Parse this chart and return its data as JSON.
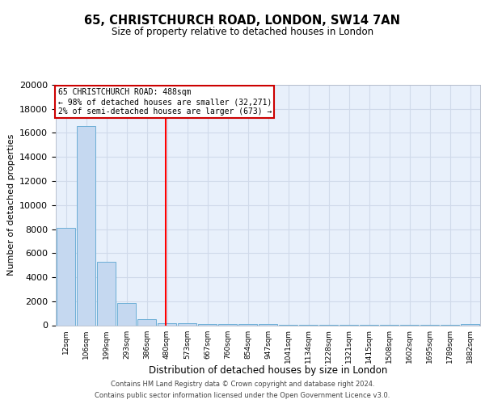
{
  "title_line1": "65, CHRISTCHURCH ROAD, LONDON, SW14 7AN",
  "title_line2": "Size of property relative to detached houses in London",
  "xlabel": "Distribution of detached houses by size in London",
  "ylabel": "Number of detached properties",
  "categories": [
    "12sqm",
    "106sqm",
    "199sqm",
    "293sqm",
    "386sqm",
    "480sqm",
    "573sqm",
    "667sqm",
    "760sqm",
    "854sqm",
    "947sqm",
    "1041sqm",
    "1134sqm",
    "1228sqm",
    "1321sqm",
    "1415sqm",
    "1508sqm",
    "1602sqm",
    "1695sqm",
    "1789sqm",
    "1882sqm"
  ],
  "bar_heights": [
    8100,
    16600,
    5300,
    1850,
    500,
    200,
    150,
    100,
    100,
    80,
    70,
    60,
    50,
    50,
    50,
    40,
    40,
    30,
    30,
    30,
    120
  ],
  "bar_color": "#c5d8f0",
  "bar_edge_color": "#6baed6",
  "background_color": "#e8f0fb",
  "grid_color": "#d0daea",
  "red_line_index": 5,
  "annotation_title": "65 CHRISTCHURCH ROAD: 488sqm",
  "annotation_line1": "← 98% of detached houses are smaller (32,271)",
  "annotation_line2": "2% of semi-detached houses are larger (673) →",
  "annotation_box_color": "#ffffff",
  "annotation_box_edge": "#cc0000",
  "footer_line1": "Contains HM Land Registry data © Crown copyright and database right 2024.",
  "footer_line2": "Contains public sector information licensed under the Open Government Licence v3.0.",
  "ylim": [
    0,
    20000
  ],
  "yticks": [
    0,
    2000,
    4000,
    6000,
    8000,
    10000,
    12000,
    14000,
    16000,
    18000,
    20000
  ]
}
